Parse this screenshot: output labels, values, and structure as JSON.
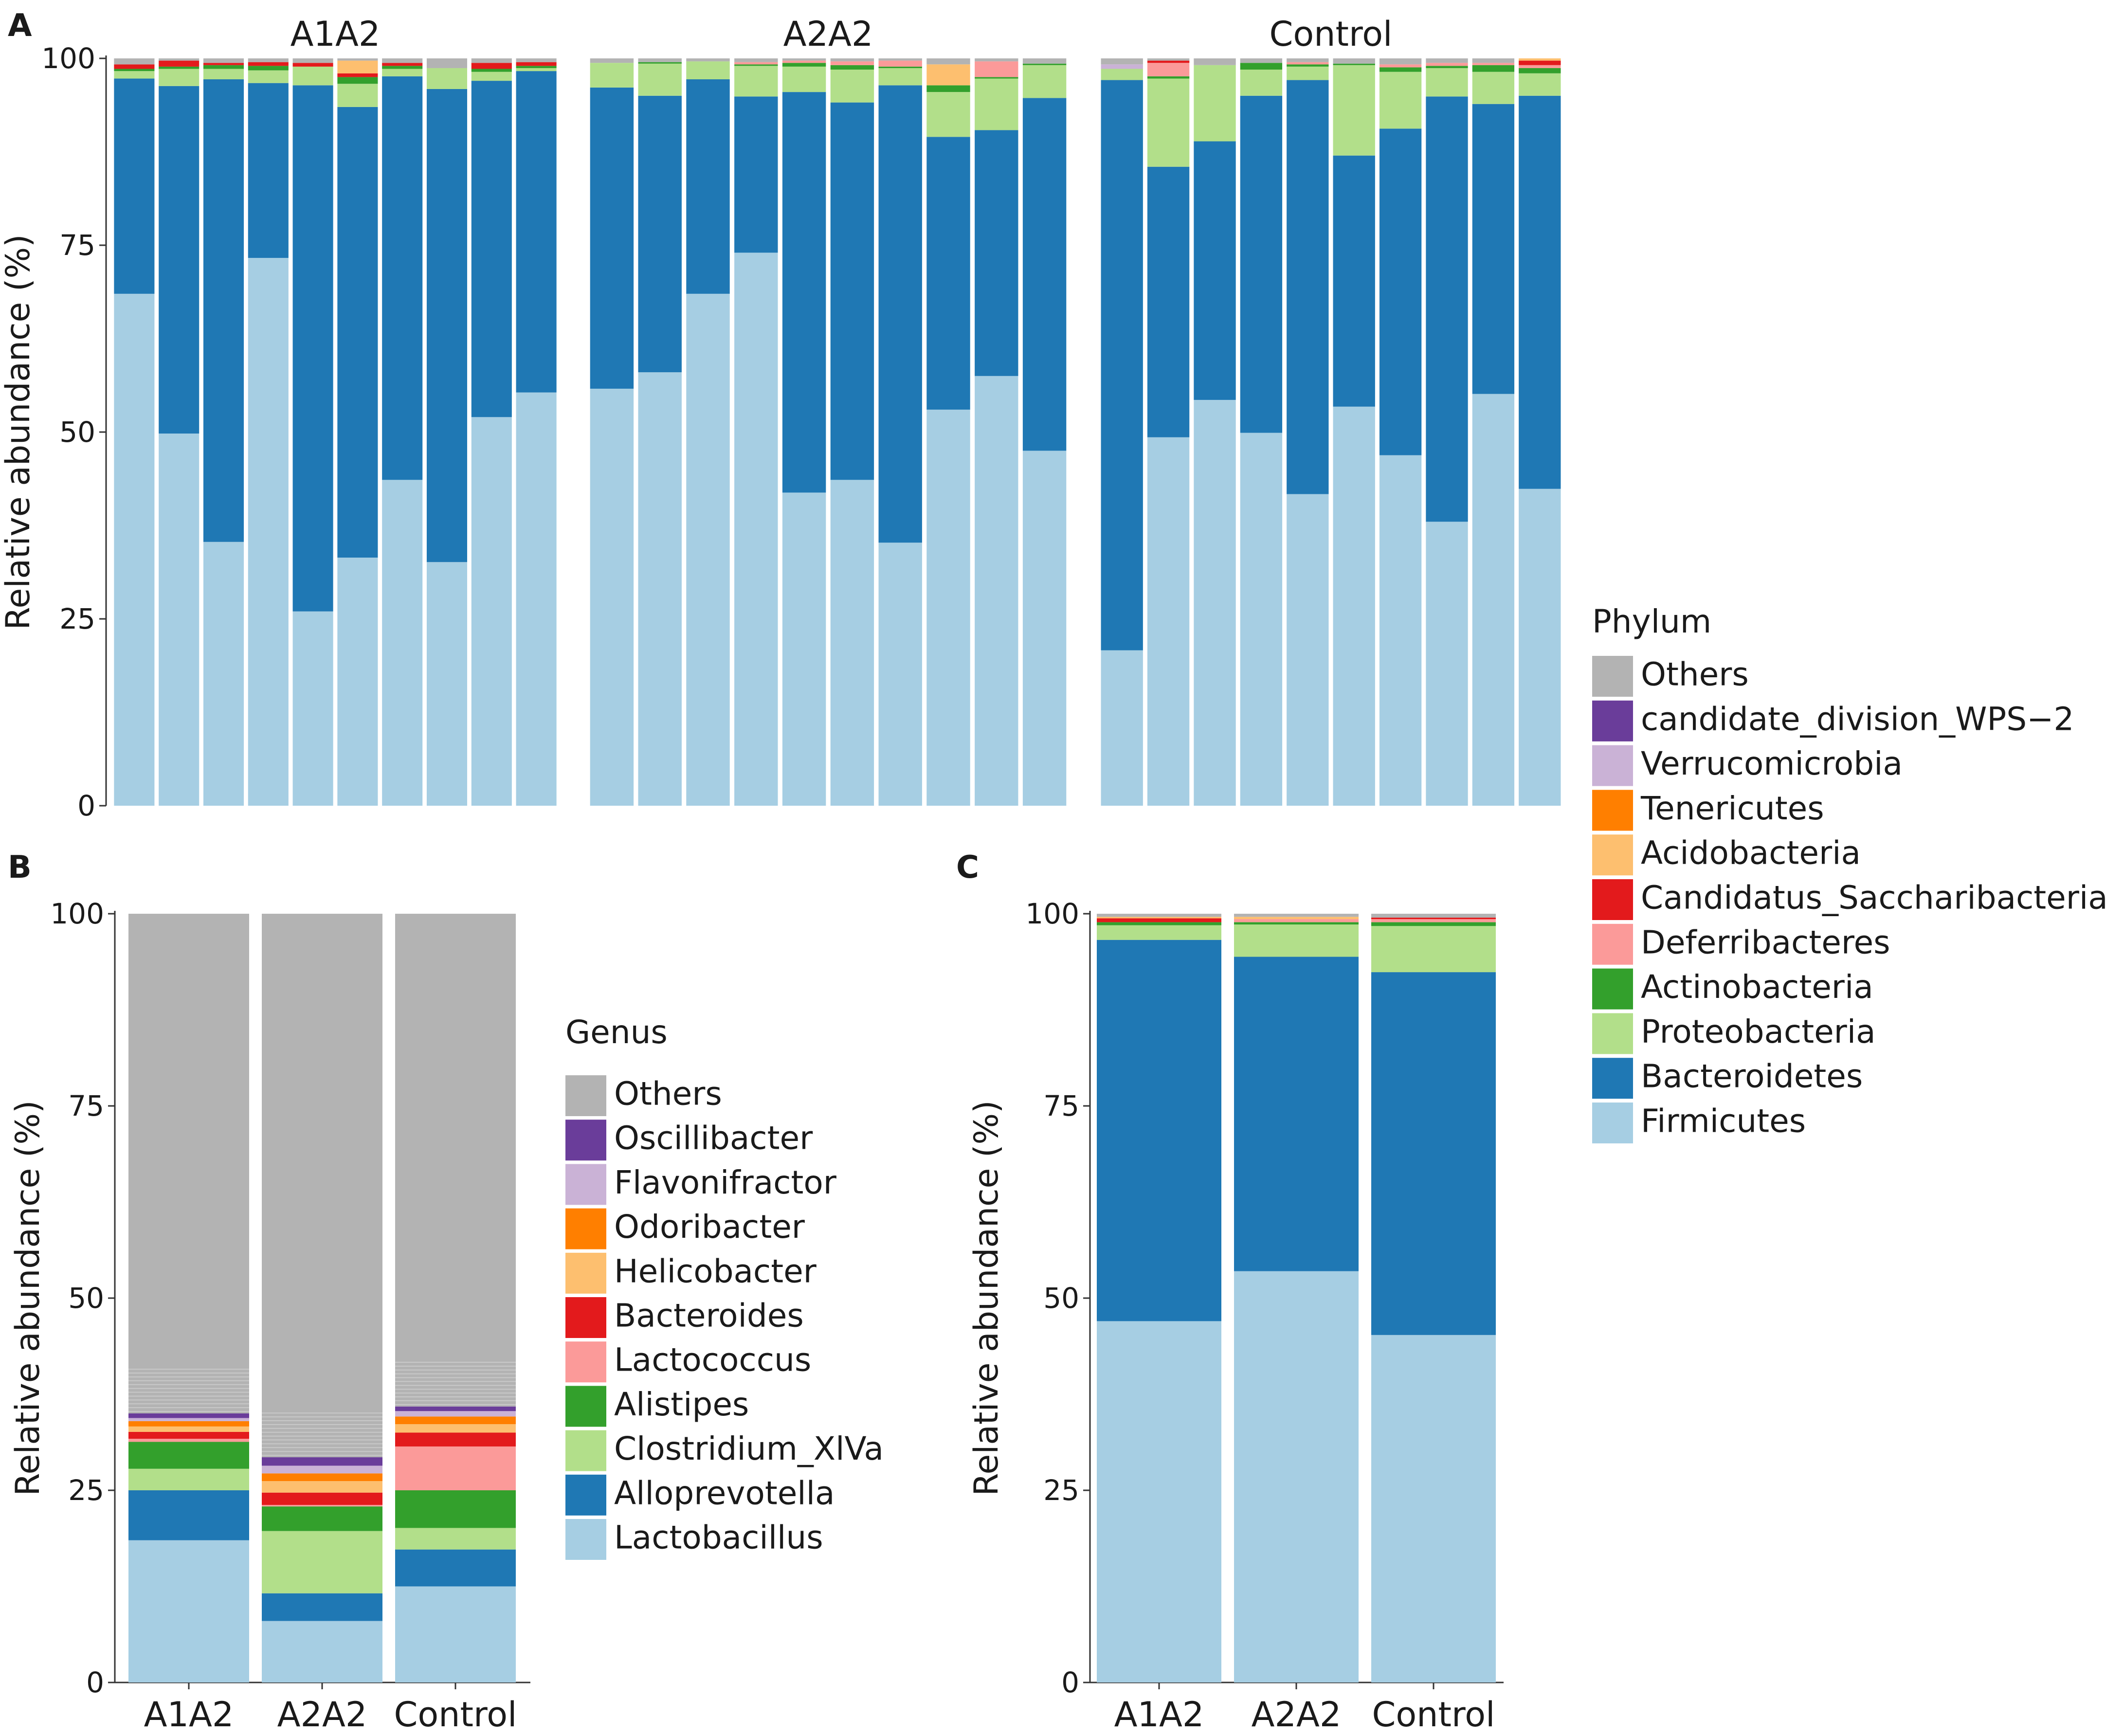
{
  "colors": {
    "phylum": {
      "Others": "#b3b3b3",
      "candidate_division_WPS-2": "#6a3d9a",
      "Verrucomicrobia": "#cab2d6",
      "Tenericutes": "#ff7f00",
      "Acidobacteria": "#fdbf6f",
      "Candidatus_Saccharibacteria": "#e31a1c",
      "Deferribacteres": "#fb9a99",
      "Actinobacteria": "#33a02c",
      "Proteobacteria": "#b2df8a",
      "Bacteroidetes": "#1f78b4",
      "Firmicutes": "#a6cee3"
    },
    "genus": {
      "Others": "#b3b3b3",
      "Oscillibacter": "#6a3d9a",
      "Flavonifractor": "#cab2d6",
      "Odoribacter": "#ff7f00",
      "Helicobacter": "#fdbf6f",
      "Bacteroides": "#e31a1c",
      "Lactococcus": "#fb9a99",
      "Alistipes": "#33a02c",
      "Clostridium_XlVa": "#b2df8a",
      "Alloprevotella": "#1f78b4",
      "Lactobacillus": "#a6cee3"
    }
  },
  "panel_letters": {
    "a": "A",
    "b": "B",
    "c": "C"
  },
  "chart_data": [
    {
      "panel": "A",
      "type": "bar",
      "stacked": true,
      "faceted": true,
      "ylabel": "Relative abundance (%)",
      "ylim": [
        0,
        100
      ],
      "yticks": [
        "0",
        "25",
        "50",
        "75",
        "100"
      ],
      "legend": {
        "title": "Phylum",
        "position": "right",
        "entries": [
          "Others",
          "candidate_division_WPS−2",
          "Verrucomicrobia",
          "Tenericutes",
          "Acidobacteria",
          "Candidatus_Saccharibacteria",
          "Deferribacteres",
          "Actinobacteria",
          "Proteobacteria",
          "Bacteroidetes",
          "Firmicutes"
        ]
      },
      "stack_order": [
        "Firmicutes",
        "Bacteroidetes",
        "Proteobacteria",
        "Actinobacteria",
        "Deferribacteres",
        "Candidatus_Saccharibacteria",
        "Acidobacteria",
        "Tenericutes",
        "Verrucomicrobia",
        "candidate_division_WPS-2",
        "Others"
      ],
      "facets": [
        {
          "name": "A1A2",
          "samples": [
            {
              "Firmicutes": 68.5,
              "Bacteroidetes": 28.8,
              "Proteobacteria": 1.0,
              "Actinobacteria": 0.3,
              "Candidatus_Saccharibacteria": 0.6,
              "Others": 0.8
            },
            {
              "Firmicutes": 49.8,
              "Bacteroidetes": 46.5,
              "Proteobacteria": 2.3,
              "Actinobacteria": 0.3,
              "Candidatus_Saccharibacteria": 0.8,
              "Others": 0.3
            },
            {
              "Firmicutes": 35.3,
              "Bacteroidetes": 61.9,
              "Proteobacteria": 1.4,
              "Actinobacteria": 0.5,
              "Candidatus_Saccharibacteria": 0.3,
              "Others": 0.6
            },
            {
              "Firmicutes": 73.3,
              "Bacteroidetes": 23.4,
              "Proteobacteria": 1.7,
              "Actinobacteria": 0.6,
              "Candidatus_Saccharibacteria": 0.5,
              "Others": 0.5
            },
            {
              "Firmicutes": 26.0,
              "Bacteroidetes": 70.4,
              "Proteobacteria": 2.5,
              "Candidatus_Saccharibacteria": 0.5,
              "Others": 0.6
            },
            {
              "Firmicutes": 33.2,
              "Bacteroidetes": 60.3,
              "Proteobacteria": 3.1,
              "Actinobacteria": 0.9,
              "Candidatus_Saccharibacteria": 0.5,
              "Acidobacteria": 1.7,
              "Others": 0.3
            },
            {
              "Firmicutes": 43.6,
              "Bacteroidetes": 54.0,
              "Proteobacteria": 1.0,
              "Actinobacteria": 0.4,
              "Candidatus_Saccharibacteria": 0.4,
              "Others": 0.6
            },
            {
              "Firmicutes": 32.6,
              "Bacteroidetes": 63.3,
              "Proteobacteria": 2.8,
              "Others": 1.3
            },
            {
              "Firmicutes": 52.0,
              "Bacteroidetes": 45.0,
              "Proteobacteria": 1.2,
              "Actinobacteria": 0.4,
              "Candidatus_Saccharibacteria": 0.8,
              "Others": 0.6
            },
            {
              "Firmicutes": 55.3,
              "Bacteroidetes": 43.0,
              "Proteobacteria": 0.4,
              "Actinobacteria": 0.3,
              "Candidatus_Saccharibacteria": 0.5,
              "Others": 0.5
            }
          ]
        },
        {
          "name": "A2A2",
          "samples": [
            {
              "Firmicutes": 55.8,
              "Bacteroidetes": 40.3,
              "Proteobacteria": 3.3,
              "Others": 0.6
            },
            {
              "Firmicutes": 58.0,
              "Bacteroidetes": 37.0,
              "Proteobacteria": 4.3,
              "Actinobacteria": 0.2,
              "Others": 0.5
            },
            {
              "Firmicutes": 68.5,
              "Bacteroidetes": 28.7,
              "Proteobacteria": 2.4,
              "Others": 0.4
            },
            {
              "Firmicutes": 74.0,
              "Bacteroidetes": 20.9,
              "Proteobacteria": 4.1,
              "Actinobacteria": 0.2,
              "Deferribacteres": 0.3,
              "Others": 0.5
            },
            {
              "Firmicutes": 41.9,
              "Bacteroidetes": 53.6,
              "Proteobacteria": 3.4,
              "Actinobacteria": 0.5,
              "Deferribacteres": 0.3,
              "Others": 0.3
            },
            {
              "Firmicutes": 43.6,
              "Bacteroidetes": 50.5,
              "Proteobacteria": 4.4,
              "Actinobacteria": 0.6,
              "Deferribacteres": 0.5,
              "Others": 0.4
            },
            {
              "Firmicutes": 35.2,
              "Bacteroidetes": 61.2,
              "Proteobacteria": 2.3,
              "Actinobacteria": 0.2,
              "Deferribacteres": 0.8,
              "Others": 0.3
            },
            {
              "Firmicutes": 53.0,
              "Bacteroidetes": 36.5,
              "Proteobacteria": 6.0,
              "Actinobacteria": 0.9,
              "Acidobacteria": 2.8,
              "Others": 0.8
            },
            {
              "Firmicutes": 57.5,
              "Bacteroidetes": 32.9,
              "Proteobacteria": 6.9,
              "Actinobacteria": 0.2,
              "Deferribacteres": 2.1,
              "Others": 0.4
            },
            {
              "Firmicutes": 47.5,
              "Bacteroidetes": 47.2,
              "Proteobacteria": 4.4,
              "Actinobacteria": 0.2,
              "Others": 0.7
            }
          ]
        },
        {
          "name": "Control",
          "samples": [
            {
              "Firmicutes": 20.8,
              "Bacteroidetes": 76.3,
              "Proteobacteria": 1.5,
              "Verrucomicrobia": 0.6,
              "Others": 0.8
            },
            {
              "Firmicutes": 49.3,
              "Bacteroidetes": 36.2,
              "Proteobacteria": 11.8,
              "Actinobacteria": 0.3,
              "Deferribacteres": 1.8,
              "Candidatus_Saccharibacteria": 0.3,
              "Others": 0.3
            },
            {
              "Firmicutes": 54.3,
              "Bacteroidetes": 34.6,
              "Proteobacteria": 10.2,
              "Others": 0.9
            },
            {
              "Firmicutes": 49.9,
              "Bacteroidetes": 45.1,
              "Proteobacteria": 3.5,
              "Actinobacteria": 0.9,
              "Others": 0.6
            },
            {
              "Firmicutes": 41.7,
              "Bacteroidetes": 55.4,
              "Proteobacteria": 1.8,
              "Actinobacteria": 0.3,
              "Deferribacteres": 0.3,
              "Others": 0.5
            },
            {
              "Firmicutes": 53.4,
              "Bacteroidetes": 33.6,
              "Proteobacteria": 12.1,
              "Actinobacteria": 0.2,
              "Others": 0.7
            },
            {
              "Firmicutes": 46.9,
              "Bacteroidetes": 43.7,
              "Proteobacteria": 7.6,
              "Actinobacteria": 0.6,
              "Deferribacteres": 0.4,
              "Others": 0.8
            },
            {
              "Firmicutes": 38.0,
              "Bacteroidetes": 56.9,
              "Proteobacteria": 3.8,
              "Actinobacteria": 0.3,
              "Deferribacteres": 0.4,
              "Others": 0.6
            },
            {
              "Firmicutes": 55.1,
              "Bacteroidetes": 38.8,
              "Proteobacteria": 4.3,
              "Actinobacteria": 0.9,
              "Deferribacteres": 0.3,
              "Others": 0.6
            },
            {
              "Firmicutes": 42.4,
              "Bacteroidetes": 52.6,
              "Proteobacteria": 3.0,
              "Actinobacteria": 0.7,
              "Deferribacteres": 0.4,
              "Candidatus_Saccharibacteria": 0.6,
              "Acidobacteria": 0.3
            }
          ]
        }
      ]
    },
    {
      "panel": "B",
      "type": "bar",
      "stacked": true,
      "ylabel": "Relative abundance (%)",
      "ylim": [
        0,
        100
      ],
      "yticks": [
        "0",
        "25",
        "50",
        "75",
        "100"
      ],
      "categories": [
        "A1A2",
        "A2A2",
        "Control"
      ],
      "legend": {
        "title": "Genus",
        "position": "right",
        "entries": [
          "Others",
          "Oscillibacter",
          "Flavonifractor",
          "Odoribacter",
          "Helicobacter",
          "Bacteroides",
          "Lactococcus",
          "Alistipes",
          "Clostridium_XlVa",
          "Alloprevotella",
          "Lactobacillus"
        ]
      },
      "stack_order": [
        "Lactobacillus",
        "Alloprevotella",
        "Clostridium_XlVa",
        "Alistipes",
        "Lactococcus",
        "Bacteroides",
        "Helicobacter",
        "Odoribacter",
        "Flavonifractor",
        "Oscillibacter",
        "Others"
      ],
      "samples": [
        {
          "Lactobacillus": 18.5,
          "Alloprevotella": 6.5,
          "Clostridium_XlVa": 2.8,
          "Alistipes": 3.5,
          "Lactococcus": 0.4,
          "Bacteroides": 0.9,
          "Helicobacter": 0.7,
          "Odoribacter": 0.7,
          "Flavonifractor": 0.4,
          "Oscillibacter": 0.6,
          "Others": 65.0
        },
        {
          "Lactobacillus": 8.0,
          "Alloprevotella": 3.6,
          "Clostridium_XlVa": 8.1,
          "Alistipes": 3.2,
          "Lactococcus": 0.2,
          "Bacteroides": 1.6,
          "Helicobacter": 1.5,
          "Odoribacter": 1.0,
          "Flavonifractor": 1.0,
          "Oscillibacter": 1.1,
          "Others": 70.7
        },
        {
          "Lactobacillus": 12.5,
          "Alloprevotella": 4.8,
          "Clostridium_XlVa": 2.8,
          "Alistipes": 4.9,
          "Lactococcus": 5.7,
          "Bacteroides": 1.8,
          "Helicobacter": 1.1,
          "Odoribacter": 1.0,
          "Flavonifractor": 0.7,
          "Oscillibacter": 0.6,
          "Others": 64.1
        }
      ]
    },
    {
      "panel": "C",
      "type": "bar",
      "stacked": true,
      "ylabel": "Relative abundance (%)",
      "ylim": [
        0,
        100
      ],
      "yticks": [
        "0",
        "25",
        "50",
        "75",
        "100"
      ],
      "categories": [
        "A1A2",
        "A2A2",
        "Control"
      ],
      "stack_order": [
        "Firmicutes",
        "Bacteroidetes",
        "Proteobacteria",
        "Actinobacteria",
        "Deferribacteres",
        "Candidatus_Saccharibacteria",
        "Acidobacteria",
        "Tenericutes",
        "Verrucomicrobia",
        "candidate_division_WPS-2",
        "Others"
      ],
      "samples": [
        {
          "Firmicutes": 47.0,
          "Bacteroidetes": 49.6,
          "Proteobacteria": 1.9,
          "Actinobacteria": 0.4,
          "Candidatus_Saccharibacteria": 0.5,
          "Acidobacteria": 0.2,
          "Others": 0.4
        },
        {
          "Firmicutes": 53.5,
          "Bacteroidetes": 40.9,
          "Proteobacteria": 4.2,
          "Actinobacteria": 0.3,
          "Deferribacteres": 0.4,
          "Acidobacteria": 0.3,
          "Others": 0.4
        },
        {
          "Firmicutes": 45.2,
          "Bacteroidetes": 47.2,
          "Proteobacteria": 6.0,
          "Actinobacteria": 0.5,
          "Deferribacteres": 0.4,
          "Candidatus_Saccharibacteria": 0.2,
          "Others": 0.5
        }
      ]
    }
  ]
}
